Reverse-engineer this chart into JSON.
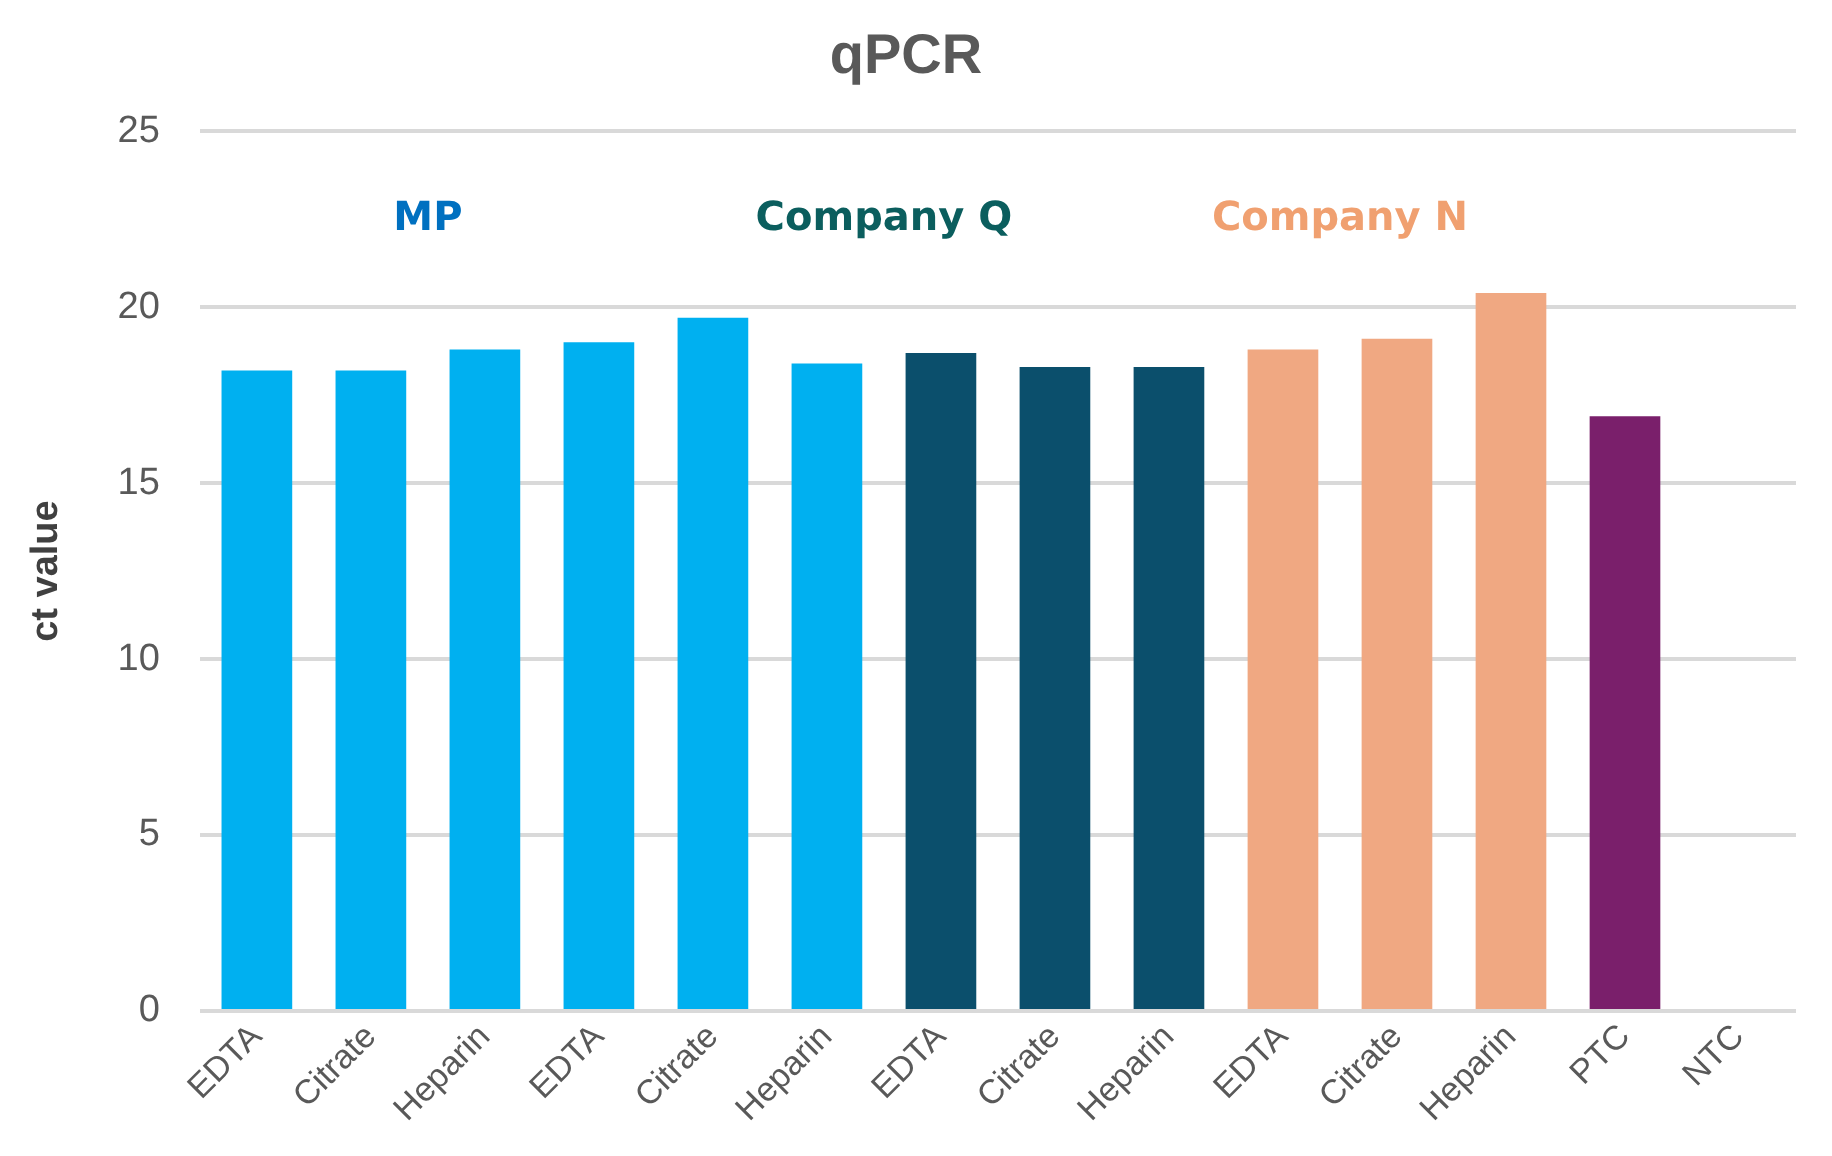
{
  "chart_data": {
    "type": "bar",
    "title": "qPCR",
    "ylabel": "ct value",
    "categories": [
      "EDTA",
      "Citrate",
      "Heparin",
      "EDTA",
      "Citrate",
      "Heparin",
      "EDTA",
      "Citrate",
      "Heparin",
      "EDTA",
      "Citrate",
      "Heparin",
      "PTC",
      "NTC"
    ],
    "values": [
      18.2,
      18.2,
      18.8,
      19.0,
      19.7,
      18.4,
      18.7,
      18.3,
      18.3,
      18.8,
      19.1,
      20.4,
      16.9,
      null
    ],
    "colors": [
      "#00b0f0",
      "#00b0f0",
      "#00b0f0",
      "#00b0f0",
      "#00b0f0",
      "#00b0f0",
      "#0b4f6c",
      "#0b4f6c",
      "#0b4f6c",
      "#f0a882",
      "#f0a882",
      "#f0a882",
      "#7a1f6b",
      "#7a1f6b"
    ],
    "annotations": [
      "MP",
      "Company Q",
      "Company N"
    ],
    "ylim": [
      0,
      25
    ],
    "yticks": [
      0,
      5,
      10,
      15,
      20,
      25
    ],
    "grid": "y",
    "legend": false
  }
}
